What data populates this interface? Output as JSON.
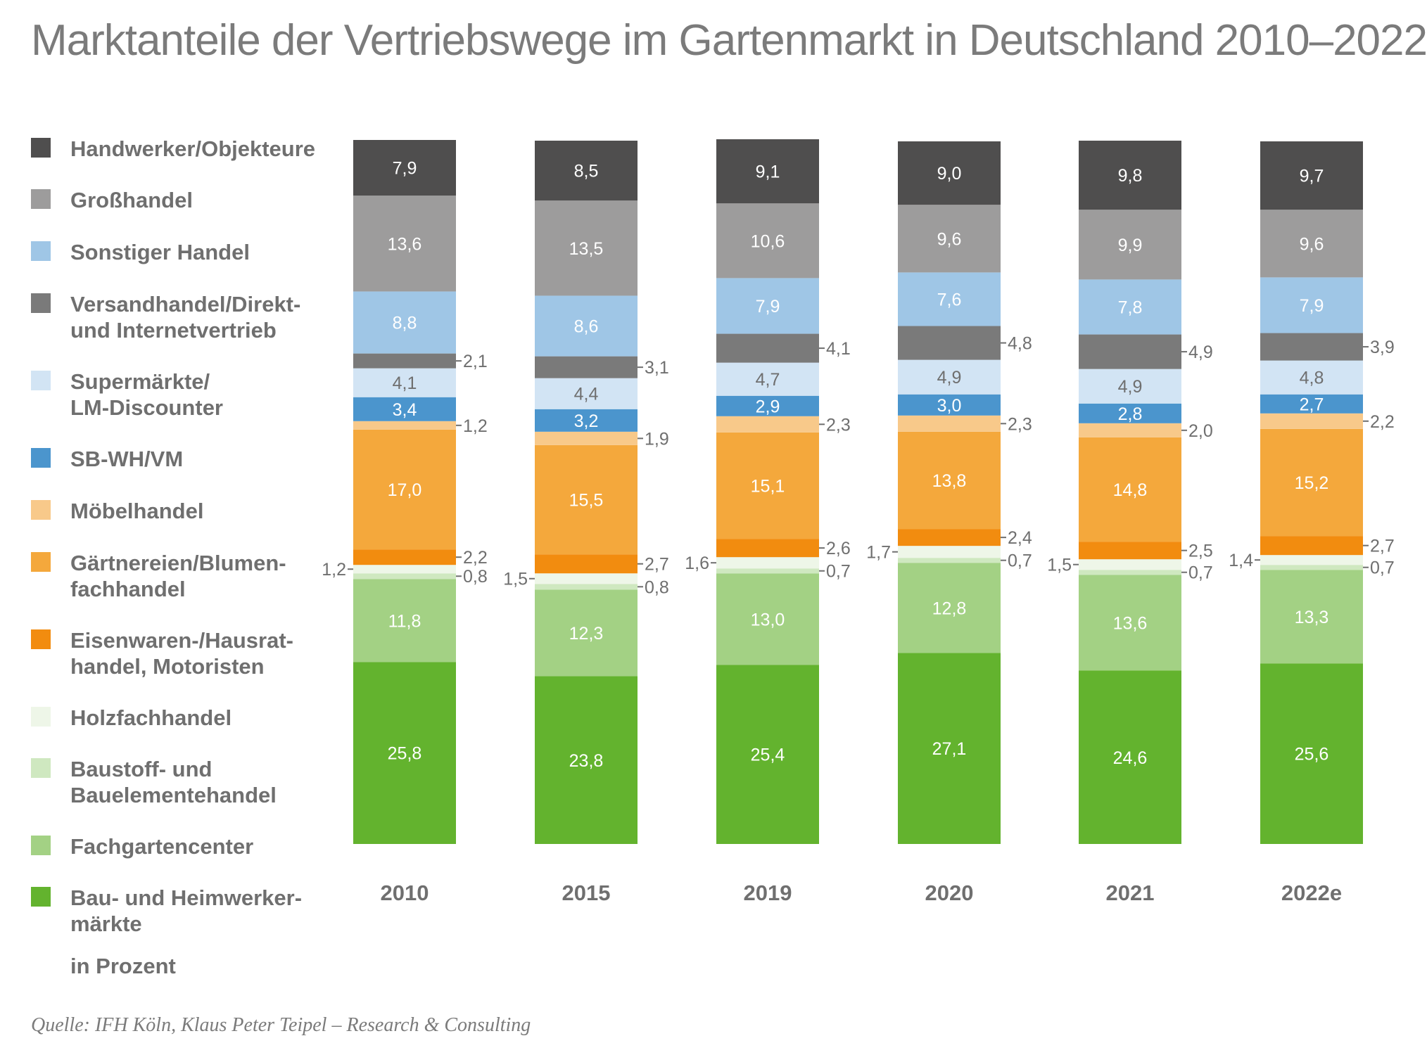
{
  "chart_data": {
    "type": "bar",
    "stacked": true,
    "title": "Marktanteile der Vertriebswege im Gartenmarkt in Deutschland 2010–2022",
    "unit_label": "in Prozent",
    "source": "Quelle: IFH Köln, Klaus Peter Teipel – Research & Consulting",
    "categories": [
      "2010",
      "2015",
      "2019",
      "2020",
      "2021",
      "2022e"
    ],
    "series": [
      {
        "name": "Bau- und Heimwerker-\nmärkte",
        "color": "#63b32e",
        "label_color": "#ffffff",
        "values": [
          25.8,
          23.8,
          25.4,
          27.1,
          24.6,
          25.6
        ],
        "labels": [
          "25,8",
          "23,8",
          "25,4",
          "27,1",
          "24,6",
          "25,6"
        ]
      },
      {
        "name": "Fachgartencenter",
        "color": "#a3d184",
        "label_color": "#ffffff",
        "values": [
          11.8,
          12.3,
          13.0,
          12.8,
          13.6,
          13.3
        ],
        "labels": [
          "11,8",
          "12,3",
          "13,0",
          "12,8",
          "13,6",
          "13,3"
        ]
      },
      {
        "name": "Baustoff- und\nBauelementehandel",
        "color": "#cfe8c0",
        "label_color": "#6f6f6f",
        "values": [
          0.8,
          0.8,
          0.7,
          0.7,
          0.7,
          0.7
        ],
        "labels": [
          "0,8",
          "0,8",
          "0,7",
          "0,7",
          "0,7",
          "0,7"
        ]
      },
      {
        "name": "Holzfachhandel",
        "color": "#eef6e8",
        "label_color": "#6f6f6f",
        "values": [
          1.2,
          1.5,
          1.6,
          1.7,
          1.5,
          1.4
        ],
        "labels": [
          "1,2",
          "1,5",
          "1,6",
          "1,7",
          "1,5",
          "1,4"
        ]
      },
      {
        "name": "Eisenwaren-/Hausrat-\nhandel, Motoristen",
        "color": "#f28c0f",
        "label_color": "#ffffff",
        "values": [
          2.2,
          2.7,
          2.6,
          2.4,
          2.5,
          2.7
        ],
        "labels": [
          "2,2",
          "2,7",
          "2,6",
          "2,4",
          "2,5",
          "2,7"
        ]
      },
      {
        "name": "Gärtnereien/Blumen-\nfachhandel",
        "color": "#f4a83c",
        "label_color": "#ffffff",
        "values": [
          17.0,
          15.5,
          15.1,
          13.8,
          14.8,
          15.2
        ],
        "labels": [
          "17,0",
          "15,5",
          "15,1",
          "13,8",
          "14,8",
          "15,2"
        ]
      },
      {
        "name": "Möbelhandel",
        "color": "#f8c98a",
        "label_color": "#ffffff",
        "values": [
          1.2,
          1.9,
          2.3,
          2.3,
          2.0,
          2.2
        ],
        "labels": [
          "1,2",
          "1,9",
          "2,3",
          "2,3",
          "2,0",
          "2,2"
        ]
      },
      {
        "name": "SB-WH/VM",
        "color": "#4b95cd",
        "label_color": "#ffffff",
        "values": [
          3.4,
          3.2,
          2.9,
          3.0,
          2.8,
          2.7
        ],
        "labels": [
          "3,4",
          "3,2",
          "2,9",
          "3,0",
          "2,8",
          "2,7"
        ]
      },
      {
        "name": "Supermärkte/\nLM-Discounter",
        "color": "#d2e4f4",
        "label_color": "#6f6f6f",
        "values": [
          4.1,
          4.4,
          4.7,
          4.9,
          4.9,
          4.8
        ],
        "labels": [
          "4,1",
          "4,4",
          "4,7",
          "4,9",
          "4,9",
          "4,8"
        ]
      },
      {
        "name": "Versandhandel/Direkt-\nund Internetvertrieb",
        "color": "#7a7a7a",
        "label_color": "#ffffff",
        "values": [
          2.1,
          3.1,
          4.1,
          4.8,
          4.9,
          3.9
        ],
        "labels": [
          "2,1",
          "3,1",
          "4,1",
          "4,8",
          "4,9",
          "3,9"
        ]
      },
      {
        "name": "Sonstiger Handel",
        "color": "#9fc6e6",
        "label_color": "#ffffff",
        "values": [
          8.8,
          8.6,
          7.9,
          7.6,
          7.8,
          7.9
        ],
        "labels": [
          "8,8",
          "8,6",
          "7,9",
          "7,6",
          "7,8",
          "7,9"
        ]
      },
      {
        "name": "Großhandel",
        "color": "#9d9c9c",
        "label_color": "#ffffff",
        "values": [
          13.6,
          13.5,
          10.6,
          9.6,
          9.9,
          9.6
        ],
        "labels": [
          "13,6",
          "13,5",
          "10,6",
          "9,6",
          "9,9",
          "9,6"
        ]
      },
      {
        "name": "Handwerker/Objekteure",
        "color": "#4f4e4e",
        "label_color": "#ffffff",
        "values": [
          7.9,
          8.5,
          9.1,
          9.0,
          9.8,
          9.7
        ],
        "labels": [
          "7,9",
          "8,5",
          "9,1",
          "9,0",
          "9,8",
          "9,7"
        ]
      }
    ],
    "outside_label_side": {
      "Baustoff- und\nBauelementehandel": "right",
      "Holzfachhandel": "left",
      "Eisenwaren-/Hausrat-\nhandel, Motoristen": "right",
      "Möbelhandel": "right",
      "Versandhandel/Direkt-\nund Internetvertrieb": "right"
    },
    "legend_placement": "left",
    "grid": false
  }
}
